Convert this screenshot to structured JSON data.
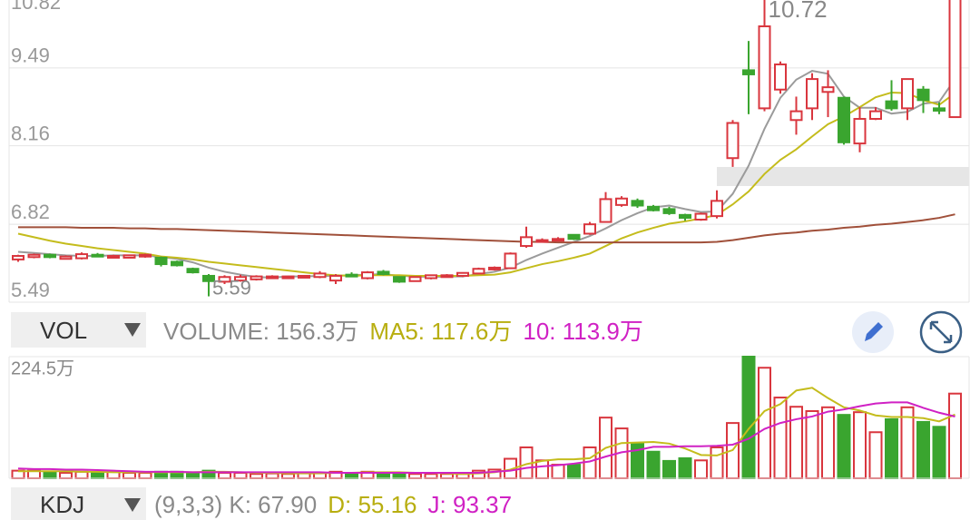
{
  "chart_data": {
    "type": "candlestick",
    "price": {
      "ylim": [
        5.49,
        10.82
      ],
      "yticks": [
        5.49,
        6.82,
        8.16,
        9.49,
        10.82
      ],
      "up_color": "#d9363e",
      "down_color": "#3aa52f",
      "open": [
        6.22,
        6.26,
        6.3,
        6.23,
        6.24,
        6.3,
        6.26,
        6.25,
        6.27,
        6.25,
        6.18,
        6.06,
        5.94,
        5.84,
        5.86,
        5.88,
        5.92,
        5.92,
        5.92,
        5.92,
        5.86,
        5.96,
        5.9,
        6.01,
        5.92,
        5.85,
        5.9,
        5.92,
        5.94,
        5.98,
        6.05,
        6.07,
        6.45,
        6.55,
        6.56,
        6.64,
        6.66,
        6.86,
        7.15,
        7.22,
        7.12,
        7.08,
        6.98,
        6.9,
        6.96,
        7.95,
        9.45,
        8.8,
        9.12,
        8.6,
        8.8,
        9.08,
        8.98,
        8.2,
        8.62,
        8.92,
        8.8,
        9.12,
        8.8,
        8.65
      ],
      "high": [
        6.3,
        6.32,
        6.32,
        6.29,
        6.34,
        6.33,
        6.3,
        6.3,
        6.32,
        6.27,
        6.2,
        6.08,
        5.97,
        5.95,
        5.96,
        5.95,
        5.95,
        5.94,
        5.95,
        6.02,
        5.97,
        6.0,
        6.02,
        6.04,
        5.93,
        5.93,
        5.96,
        5.97,
        6.0,
        6.08,
        6.1,
        6.34,
        6.78,
        6.58,
        6.6,
        6.65,
        6.86,
        7.37,
        7.3,
        7.26,
        7.15,
        7.12,
        7.0,
        7.02,
        7.4,
        8.6,
        9.95,
        10.72,
        9.6,
        9.0,
        9.4,
        9.45,
        9.0,
        8.82,
        8.82,
        9.28,
        9.3,
        9.18,
        8.9,
        10.7
      ],
      "low": [
        6.18,
        6.24,
        6.24,
        6.22,
        6.22,
        6.26,
        6.24,
        6.24,
        6.25,
        6.1,
        6.1,
        5.98,
        5.59,
        5.8,
        5.84,
        5.86,
        5.9,
        5.9,
        5.9,
        5.9,
        5.8,
        5.92,
        5.88,
        5.95,
        5.82,
        5.84,
        5.88,
        5.91,
        5.92,
        5.97,
        6.03,
        6.06,
        6.42,
        6.52,
        6.53,
        6.55,
        6.64,
        6.85,
        7.12,
        7.1,
        7.04,
        6.98,
        6.88,
        6.88,
        6.92,
        7.8,
        8.7,
        8.75,
        9.05,
        8.35,
        8.6,
        8.65,
        8.18,
        8.05,
        8.6,
        8.76,
        8.6,
        8.72,
        8.7,
        8.65
      ],
      "close": [
        6.28,
        6.3,
        6.26,
        6.27,
        6.31,
        6.28,
        6.28,
        6.29,
        6.3,
        6.14,
        6.12,
        6.0,
        5.85,
        5.92,
        5.92,
        5.93,
        5.93,
        5.93,
        5.94,
        5.98,
        5.94,
        5.94,
        6.0,
        5.97,
        5.84,
        5.92,
        5.95,
        5.95,
        5.99,
        6.06,
        6.08,
        6.32,
        6.6,
        6.55,
        6.57,
        6.57,
        6.82,
        7.25,
        7.26,
        7.14,
        7.06,
        7.01,
        6.93,
        7.0,
        7.22,
        8.55,
        9.38,
        10.2,
        9.55,
        8.75,
        9.3,
        9.16,
        8.22,
        8.62,
        8.75,
        8.8,
        9.3,
        8.94,
        8.76,
        10.7
      ],
      "lines": [
        {
          "color": "#9b9b9b",
          "values": [
            6.35,
            6.33,
            6.31,
            6.29,
            6.28,
            6.28,
            6.29,
            6.29,
            6.29,
            6.26,
            6.23,
            6.17,
            6.08,
            6.01,
            5.96,
            5.92,
            5.91,
            5.93,
            5.93,
            5.94,
            5.94,
            5.95,
            5.96,
            5.97,
            5.94,
            5.93,
            5.92,
            5.93,
            5.93,
            5.97,
            6.01,
            6.08,
            6.21,
            6.32,
            6.42,
            6.52,
            6.62,
            6.75,
            6.89,
            7.01,
            7.11,
            7.14,
            7.08,
            7.03,
            7.04,
            7.34,
            7.82,
            8.45,
            8.98,
            9.29,
            9.44,
            9.39,
            9.0,
            8.81,
            8.81,
            8.71,
            8.74,
            8.88,
            8.91,
            9.3
          ]
        },
        {
          "color": "#c4bc1c",
          "values": [
            6.66,
            6.6,
            6.54,
            6.49,
            6.45,
            6.41,
            6.38,
            6.35,
            6.32,
            6.27,
            6.25,
            6.22,
            6.18,
            6.15,
            6.12,
            6.09,
            6.06,
            6.03,
            6.0,
            5.97,
            5.95,
            5.94,
            5.95,
            5.95,
            5.95,
            5.94,
            5.94,
            5.94,
            5.94,
            5.95,
            5.96,
            6.0,
            6.07,
            6.14,
            6.19,
            6.25,
            6.32,
            6.45,
            6.58,
            6.68,
            6.76,
            6.83,
            6.87,
            6.92,
            6.98,
            7.16,
            7.38,
            7.68,
            7.92,
            8.1,
            8.32,
            8.53,
            8.66,
            8.82,
            8.99,
            9.07,
            9.06,
            8.94,
            8.86,
            9.06
          ]
        },
        {
          "color": "#a0503a",
          "values": [
            6.77,
            6.77,
            6.77,
            6.77,
            6.76,
            6.76,
            6.76,
            6.75,
            6.75,
            6.74,
            6.74,
            6.73,
            6.72,
            6.71,
            6.7,
            6.69,
            6.68,
            6.67,
            6.66,
            6.65,
            6.64,
            6.63,
            6.62,
            6.61,
            6.6,
            6.59,
            6.58,
            6.57,
            6.56,
            6.55,
            6.54,
            6.53,
            6.52,
            6.52,
            6.51,
            6.51,
            6.51,
            6.51,
            6.51,
            6.51,
            6.51,
            6.51,
            6.51,
            6.51,
            6.52,
            6.55,
            6.59,
            6.63,
            6.66,
            6.68,
            6.71,
            6.73,
            6.76,
            6.78,
            6.81,
            6.83,
            6.86,
            6.89,
            6.93,
            6.99
          ]
        }
      ]
    },
    "volume": {
      "selector": "VOL",
      "legend": [
        {
          "text": "VOLUME: 156.3万",
          "color": "#8a8a8a"
        },
        {
          "text": "MA5: 117.6万",
          "color": "#b8ae10"
        },
        {
          "text": "10: 113.9万",
          "color": "#d021c4"
        }
      ],
      "ylim": [
        0,
        224.5
      ],
      "yticks": [
        {
          "value": 224.5,
          "label": "224.5万"
        }
      ],
      "values": [
        14,
        14,
        12,
        10,
        12,
        10,
        12,
        10,
        10,
        12,
        12,
        10,
        14,
        10,
        10,
        8,
        9,
        8,
        10,
        10,
        12,
        10,
        12,
        10,
        10,
        8,
        8,
        8,
        8,
        14,
        16,
        36,
        57,
        33,
        25,
        25,
        57,
        112,
        92,
        65,
        49,
        32,
        37,
        33,
        57,
        102,
        224.5,
        204,
        149,
        132,
        124,
        131,
        117,
        122,
        85,
        109,
        131,
        104,
        95,
        156.3
      ],
      "lines": [
        {
          "color": "#c4bc1c",
          "values": [
            13,
            13,
            13,
            13,
            12,
            12,
            11,
            11,
            11,
            11,
            11,
            11,
            12,
            12,
            11,
            10,
            10,
            9,
            9,
            9,
            10,
            10,
            11,
            11,
            11,
            10,
            10,
            9,
            8,
            9,
            11,
            16,
            26,
            32,
            35,
            35,
            37,
            56,
            65,
            66,
            67,
            64,
            55,
            43,
            42,
            52,
            91,
            124,
            137,
            162,
            167,
            148,
            131,
            125,
            116,
            113,
            113,
            111,
            105,
            117.6
          ]
        },
        {
          "color": "#d021c4",
          "values": [
            18,
            17,
            17,
            16,
            16,
            15,
            14,
            13,
            12,
            12,
            12,
            11,
            11,
            11,
            11,
            11,
            11,
            11,
            11,
            11,
            10,
            10,
            10,
            10,
            10,
            10,
            10,
            10,
            10,
            10,
            12,
            14,
            19,
            22,
            24,
            27,
            31,
            40,
            48,
            52,
            58,
            58,
            59,
            59,
            60,
            62,
            73,
            91,
            102,
            109,
            114,
            123,
            127,
            133,
            138,
            140,
            140,
            130,
            121,
            113.9
          ]
        }
      ]
    },
    "kdj": {
      "selector": "KDJ",
      "legend": [
        {
          "text": "(9,3,3) K: 67.90",
          "color": "#8a8a8a"
        },
        {
          "text": "D: 55.16",
          "color": "#b8ae10"
        },
        {
          "text": "J: 93.37",
          "color": "#d021c4"
        }
      ]
    }
  }
}
